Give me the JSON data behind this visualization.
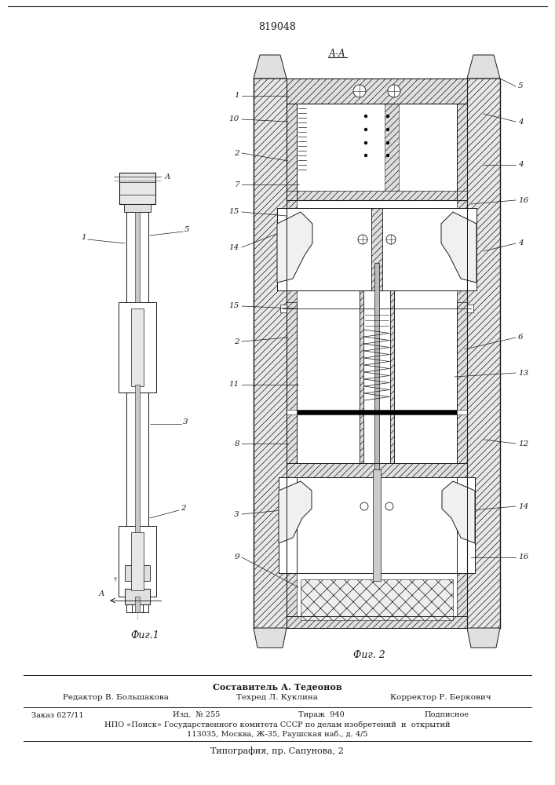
{
  "patent_number": "819048",
  "section_label": "А-А",
  "fig1_label": "Фиг.1",
  "fig2_label": "Фиг. 2",
  "footer_line1": "Составитель А. Тедеонов",
  "footer_line2_col1": "Редактор В. Большакова",
  "footer_line2_col2": "Техред Л. Куклина",
  "footer_line2_col3": "Корректор Р. Беркович",
  "footer_line3_col1": "Заказ 627/11",
  "footer_line3_col2": "Изд.  № 255",
  "footer_line3_col3": "Тираж  940",
  "footer_line3_col4": "Подписное",
  "footer_line4": "НПО «Поиск» Государственного комитета СССР по делам изобретений  и  открытий",
  "footer_line5": "113035, Москва, Ж-35, Раушская наб., д. 4/5",
  "footer_line6": "Типография, пр. Сапунова, 2",
  "bg_color": "#ffffff",
  "line_color": "#1a1a1a",
  "hatch_color": "#555555"
}
